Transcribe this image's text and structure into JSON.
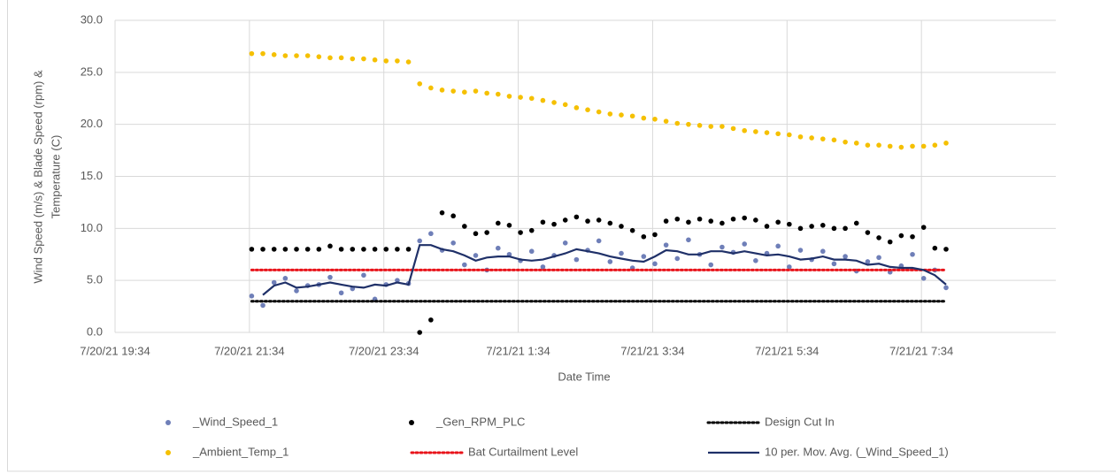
{
  "chart_data": {
    "type": "scatter",
    "xlabel": "Date Time",
    "ylabel": [
      "Wind Speed (m/s) & Blade Speed (rpm) &",
      "Temperature (C)"
    ],
    "xlim": [
      "7/20/21 19:34",
      "7/21/21 9:34"
    ],
    "xticks": [
      "7/20/21 19:34",
      "7/20/21 21:34",
      "7/20/21 23:34",
      "7/21/21 1:34",
      "7/21/21 3:34",
      "7/21/21 5:34",
      "7/21/21 7:34"
    ],
    "ylim": [
      0,
      30
    ],
    "yticks": [
      {
        "value": 0,
        "label": "0.0"
      },
      {
        "value": 5,
        "label": "5.0"
      },
      {
        "value": 10,
        "label": "10.0"
      },
      {
        "value": 15,
        "label": "15.0"
      },
      {
        "value": 20,
        "label": "20.0"
      },
      {
        "value": 25,
        "label": "25.0"
      },
      {
        "value": 30,
        "label": "30.0"
      }
    ],
    "grid": true,
    "x": [
      "7/20/21 21:36",
      "7/20/21 21:46",
      "7/20/21 21:56",
      "7/20/21 22:06",
      "7/20/21 22:16",
      "7/20/21 22:26",
      "7/20/21 22:36",
      "7/20/21 22:46",
      "7/20/21 22:56",
      "7/20/21 23:06",
      "7/20/21 23:16",
      "7/20/21 23:26",
      "7/20/21 23:36",
      "7/20/21 23:46",
      "7/20/21 23:56",
      "7/21/21 0:06",
      "7/21/21 0:16",
      "7/21/21 0:26",
      "7/21/21 0:36",
      "7/21/21 0:46",
      "7/21/21 0:56",
      "7/21/21 1:06",
      "7/21/21 1:16",
      "7/21/21 1:26",
      "7/21/21 1:36",
      "7/21/21 1:46",
      "7/21/21 1:56",
      "7/21/21 2:06",
      "7/21/21 2:16",
      "7/21/21 2:26",
      "7/21/21 2:36",
      "7/21/21 2:46",
      "7/21/21 2:56",
      "7/21/21 3:06",
      "7/21/21 3:16",
      "7/21/21 3:26",
      "7/21/21 3:36",
      "7/21/21 3:46",
      "7/21/21 3:56",
      "7/21/21 4:06",
      "7/21/21 4:16",
      "7/21/21 4:26",
      "7/21/21 4:36",
      "7/21/21 4:46",
      "7/21/21 4:56",
      "7/21/21 5:06",
      "7/21/21 5:16",
      "7/21/21 5:26",
      "7/21/21 5:36",
      "7/21/21 5:46",
      "7/21/21 5:56",
      "7/21/21 6:06",
      "7/21/21 6:16",
      "7/21/21 6:26",
      "7/21/21 6:36",
      "7/21/21 6:46",
      "7/21/21 6:56",
      "7/21/21 7:06",
      "7/21/21 7:16",
      "7/21/21 7:26",
      "7/21/21 7:36",
      "7/21/21 7:46",
      "7/21/21 7:56"
    ],
    "series": [
      {
        "name": "_Wind_Speed_1",
        "color": "#6f7fb8",
        "style": "markers",
        "values": [
          3.5,
          2.6,
          4.8,
          5.2,
          4.0,
          4.5,
          4.6,
          5.3,
          3.8,
          4.2,
          5.5,
          3.2,
          4.6,
          5.0,
          4.7,
          8.8,
          9.5,
          7.9,
          8.6,
          6.5,
          7.4,
          6.0,
          8.1,
          7.5,
          6.9,
          7.8,
          6.3,
          7.4,
          8.6,
          7.0,
          7.9,
          8.8,
          6.8,
          7.6,
          6.2,
          7.3,
          6.6,
          8.4,
          7.1,
          8.9,
          7.5,
          6.5,
          8.2,
          7.7,
          8.5,
          6.9,
          7.6,
          8.3,
          6.3,
          7.9,
          7.0,
          7.8,
          6.6,
          7.3,
          5.9,
          6.8,
          7.2,
          5.8,
          6.4,
          7.5,
          5.2,
          6.0,
          4.3
        ]
      },
      {
        "name": "_Gen_RPM_PLC",
        "color": "#000000",
        "style": "markers",
        "values": [
          8.0,
          8.0,
          8.0,
          8.0,
          8.0,
          8.0,
          8.0,
          8.3,
          8.0,
          8.0,
          8.0,
          8.0,
          8.0,
          8.0,
          8.0,
          0.0,
          1.2,
          11.5,
          11.2,
          10.2,
          9.5,
          9.6,
          10.5,
          10.3,
          9.6,
          9.8,
          10.6,
          10.4,
          10.8,
          11.1,
          10.7,
          10.8,
          10.5,
          10.2,
          9.8,
          9.2,
          9.4,
          10.7,
          10.9,
          10.6,
          10.9,
          10.7,
          10.5,
          10.9,
          11.0,
          10.8,
          10.2,
          10.6,
          10.4,
          10.0,
          10.2,
          10.3,
          10.0,
          10.0,
          10.5,
          9.6,
          9.1,
          8.7,
          9.3,
          9.2,
          10.1,
          8.1,
          8.0
        ]
      },
      {
        "name": "Design Cut In",
        "color": "#000000",
        "style": "dotted",
        "x": [
          "7/20/21 21:36",
          "7/21/21 7:56"
        ],
        "values": [
          3.0,
          3.0
        ]
      },
      {
        "name": "_Ambient_Temp_1",
        "color": "#f5c000",
        "style": "markers",
        "values": [
          26.8,
          26.8,
          26.7,
          26.6,
          26.6,
          26.6,
          26.5,
          26.4,
          26.4,
          26.3,
          26.3,
          26.2,
          26.1,
          26.1,
          26.0,
          23.9,
          23.5,
          23.3,
          23.2,
          23.1,
          23.2,
          23.0,
          22.9,
          22.7,
          22.6,
          22.5,
          22.3,
          22.1,
          21.9,
          21.6,
          21.4,
          21.2,
          21.0,
          20.9,
          20.8,
          20.6,
          20.5,
          20.3,
          20.1,
          20.0,
          19.9,
          19.8,
          19.8,
          19.6,
          19.4,
          19.3,
          19.2,
          19.1,
          19.0,
          18.8,
          18.7,
          18.6,
          18.5,
          18.3,
          18.2,
          18.0,
          18.0,
          17.9,
          17.8,
          17.9,
          17.9,
          18.0,
          18.2
        ]
      },
      {
        "name": "Bat Curtailment Level",
        "color": "#e8141b",
        "style": "dotted",
        "x": [
          "7/20/21 21:36",
          "7/21/21 7:56"
        ],
        "values": [
          6.0,
          6.0
        ]
      },
      {
        "name": "10 per. Mov. Avg. (_Wind_Speed_1)",
        "color": "#1f3068",
        "style": "line",
        "values": [
          null,
          3.6,
          4.5,
          4.8,
          4.3,
          4.4,
          4.6,
          4.8,
          4.6,
          4.4,
          4.3,
          4.6,
          4.5,
          4.8,
          4.6,
          8.4,
          8.4,
          8.0,
          7.8,
          7.4,
          6.9,
          7.2,
          7.3,
          7.3,
          7.0,
          6.9,
          7.0,
          7.3,
          7.6,
          8.0,
          7.8,
          7.6,
          7.3,
          7.1,
          6.9,
          6.8,
          7.3,
          7.9,
          7.8,
          7.5,
          7.5,
          7.8,
          7.8,
          7.6,
          7.8,
          7.6,
          7.4,
          7.5,
          7.3,
          7.0,
          7.1,
          7.3,
          7.0,
          7.0,
          6.9,
          6.5,
          6.6,
          6.3,
          6.2,
          6.2,
          6.0,
          5.5,
          4.6
        ]
      }
    ]
  }
}
